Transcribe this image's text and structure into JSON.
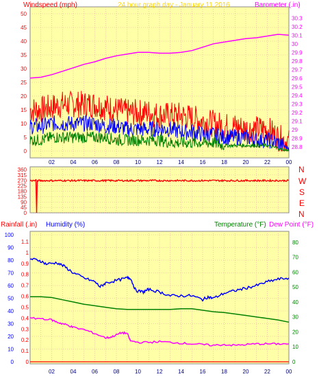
{
  "colors": {
    "background": "#ffffff",
    "plot_bg": "#ffffa8",
    "grid": "#e8a0a0",
    "red": "#ff0000",
    "blue": "#0000ff",
    "green": "#008000",
    "magenta": "#ff00ff",
    "gold": "#ffd700",
    "dark_magenta": "#c000c0"
  },
  "chart_data": [
    {
      "panel": "wind-barometer",
      "type": "line",
      "title": "24 hour graph day - January 11 2016",
      "ylabel_left": "Windspeed (mph)",
      "ylabel_right": "Barometer (.in)",
      "x_ticks": [
        "02",
        "04",
        "06",
        "08",
        "10",
        "12",
        "14",
        "16",
        "18",
        "20",
        "22",
        "00"
      ],
      "y_left_ticks": [
        "0",
        "5",
        "10",
        "15",
        "20",
        "25",
        "30",
        "35",
        "40",
        "45",
        "50"
      ],
      "y_left_lim": [
        0,
        50
      ],
      "y_right_ticks": [
        "28.8",
        "28.9",
        "29",
        "29.1",
        "29.2",
        "29.3",
        "29.4",
        "29.5",
        "29.6",
        "29.7",
        "29.8",
        "29.9",
        "30",
        "30.1",
        "30.2",
        "30.3"
      ],
      "y_right_lim": [
        28.75,
        30.35
      ],
      "grid": true,
      "series": [
        {
          "key": "barometer",
          "axis": "right",
          "color": "#ff00ff",
          "x": [
            0,
            1,
            2,
            3,
            4,
            5,
            6,
            7,
            8,
            9,
            10,
            11,
            12,
            13,
            14,
            15,
            16,
            17,
            18,
            19,
            20,
            21,
            22,
            23,
            24
          ],
          "y": [
            29.6,
            29.61,
            29.64,
            29.68,
            29.72,
            29.76,
            29.79,
            29.83,
            29.86,
            29.88,
            29.9,
            29.9,
            29.89,
            29.89,
            29.9,
            29.92,
            29.96,
            30.0,
            30.02,
            30.04,
            30.06,
            30.07,
            30.09,
            30.11,
            30.1
          ]
        },
        {
          "key": "wind_gust",
          "axis": "left",
          "color": "#ff0000",
          "x": [
            0,
            1,
            2,
            3,
            4,
            5,
            6,
            7,
            8,
            9,
            10,
            11,
            12,
            13,
            14,
            15,
            16,
            17,
            18,
            19,
            20,
            21,
            22,
            23,
            24
          ],
          "y": [
            15,
            15,
            16,
            17,
            17,
            17,
            17,
            16,
            15,
            14,
            14,
            14,
            13,
            13,
            13,
            12,
            11,
            10,
            9,
            9,
            8,
            8,
            8,
            5,
            3
          ]
        },
        {
          "key": "wind_avg",
          "axis": "left",
          "color": "#0000ff",
          "x": [
            0,
            1,
            2,
            3,
            4,
            5,
            6,
            7,
            8,
            9,
            10,
            11,
            12,
            13,
            14,
            15,
            16,
            17,
            18,
            19,
            20,
            21,
            22,
            23,
            24
          ],
          "y": [
            9,
            9,
            10,
            10,
            10,
            10,
            10,
            9,
            9,
            8,
            8,
            8,
            8,
            8,
            7,
            7,
            6,
            6,
            5,
            5,
            5,
            4,
            4,
            3,
            1
          ]
        },
        {
          "key": "wind_low",
          "axis": "left",
          "color": "#008000",
          "x": [
            0,
            1,
            2,
            3,
            4,
            5,
            6,
            7,
            8,
            9,
            10,
            11,
            12,
            13,
            14,
            15,
            16,
            17,
            18,
            19,
            20,
            21,
            22,
            23,
            24
          ],
          "y": [
            4,
            4,
            5,
            5,
            5,
            5,
            5,
            5,
            4,
            4,
            4,
            4,
            4,
            3,
            3,
            3,
            3,
            3,
            2,
            2,
            2,
            2,
            2,
            1,
            0
          ]
        }
      ]
    },
    {
      "panel": "wind-direction",
      "type": "line",
      "y_left_ticks": [
        "360",
        "315",
        "270",
        "225",
        "180",
        "135",
        "90",
        "45",
        "0"
      ],
      "y_lim": [
        0,
        360
      ],
      "compass_labels": [
        "N",
        "W",
        "S",
        "E",
        "N"
      ],
      "grid": true,
      "series": [
        {
          "key": "direction",
          "color": "#ff0000",
          "x": [
            0,
            0.3,
            0.6,
            0.61,
            0.62,
            0.63,
            0.9,
            2,
            4,
            6,
            8,
            10,
            12,
            14,
            16,
            18,
            20,
            22,
            24
          ],
          "y": [
            265,
            270,
            268,
            0,
            0,
            268,
            272,
            270,
            268,
            272,
            270,
            270,
            268,
            272,
            270,
            268,
            270,
            268,
            268
          ]
        }
      ]
    },
    {
      "panel": "rain-humidity-temperature",
      "type": "line",
      "ylabel_rain": "Rainfall (.in)",
      "ylabel_humidity": "Humidity (%)",
      "ylabel_temperature": "Temperature (°F)",
      "ylabel_dewpoint": "Dew Point (°F)",
      "x_ticks": [
        "02",
        "04",
        "06",
        "08",
        "10",
        "12",
        "14",
        "16",
        "18",
        "20",
        "22",
        "00"
      ],
      "humidity_ticks": [
        "0",
        "10",
        "20",
        "30",
        "40",
        "50",
        "60",
        "70",
        "80",
        "90",
        "100"
      ],
      "rain_ticks": [
        "0",
        "0.1",
        "0.2",
        "0.3",
        "0.4",
        "0.5",
        "0.6",
        "0.7",
        "0.8",
        "0.9",
        "1",
        "1.1"
      ],
      "temp_ticks": [
        "0",
        "10",
        "20",
        "30",
        "40",
        "50",
        "60",
        "70",
        "80"
      ],
      "humidity_lim": [
        0,
        100
      ],
      "temp_lim": [
        0,
        85
      ],
      "grid": true,
      "series": [
        {
          "key": "humidity",
          "axis": "humidity",
          "color": "#0000ff",
          "x": [
            0,
            0.8,
            1.5,
            2.5,
            3.2,
            4,
            5,
            6,
            6.5,
            7,
            8,
            9,
            9.3,
            9.8,
            10.5,
            11,
            12,
            13,
            14,
            15,
            16,
            16.5,
            17,
            18,
            19,
            20,
            21,
            22,
            23,
            24
          ],
          "y": [
            81,
            80,
            77,
            78,
            75,
            70,
            66,
            63,
            59,
            62,
            64,
            66,
            66,
            56,
            55,
            57,
            55,
            52,
            52,
            52,
            49,
            51,
            50,
            54,
            56,
            58,
            60,
            63,
            65,
            66
          ]
        },
        {
          "key": "temperature",
          "axis": "temp",
          "color": "#008000",
          "x": [
            0,
            1,
            2,
            3,
            4,
            5,
            6,
            7,
            8,
            9,
            10,
            11,
            12,
            13,
            14,
            15,
            16,
            17,
            18,
            19,
            20,
            21,
            22,
            23,
            24
          ],
          "y": [
            43.5,
            43.5,
            43,
            41.5,
            40,
            38.5,
            37.5,
            36.5,
            35.5,
            35,
            35,
            35,
            35,
            35,
            35.5,
            35.5,
            34.5,
            33.5,
            33,
            32,
            31,
            30,
            29,
            28,
            26.5
          ]
        },
        {
          "key": "dewpoint",
          "axis": "temp",
          "color": "#ff00ff",
          "x": [
            0,
            1,
            2,
            2.5,
            3,
            3.5,
            4,
            5,
            6,
            7,
            7.5,
            8,
            8.5,
            9,
            9.3,
            10,
            11,
            12,
            13,
            14,
            15,
            16,
            17,
            18,
            19,
            20,
            21,
            22,
            23,
            24
          ],
          "y": [
            29,
            29,
            28,
            26.5,
            25.5,
            24.5,
            23,
            21.5,
            19,
            16,
            16.5,
            18,
            19.5,
            19,
            14,
            13,
            13,
            13.5,
            13,
            12.5,
            12,
            11.5,
            11,
            11.5,
            11,
            11.5,
            12,
            12,
            12,
            12
          ]
        },
        {
          "key": "rainfall",
          "axis": "rain",
          "color": "#ff0000",
          "x": [
            0,
            24
          ],
          "y": [
            0,
            0
          ]
        }
      ]
    }
  ]
}
